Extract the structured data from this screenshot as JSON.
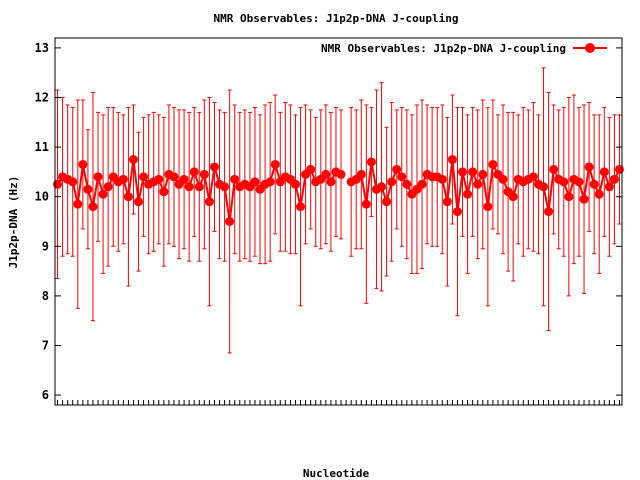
{
  "chart_data": {
    "type": "line",
    "title": "NMR Observables: J1p2p-DNA J-coupling",
    "xlabel": "Nucleotide",
    "ylabel": "J1p2p-DNA (Hz)",
    "ylim": [
      5.8,
      13.2
    ],
    "yticks": [
      6,
      7,
      8,
      9,
      10,
      11,
      12,
      13
    ],
    "x_tick_labels_legible": false,
    "legend": {
      "position": "top-right",
      "entries": [
        "NMR Observables: J1p2p-DNA J-coupling"
      ]
    },
    "grid": false,
    "series": [
      {
        "name": "NMR Observables: J1p2p-DNA J-coupling",
        "color": "#ff0000",
        "marker": "circle",
        "values": [
          10.25,
          10.4,
          10.35,
          10.3,
          9.85,
          10.65,
          10.15,
          9.8,
          10.4,
          10.05,
          10.2,
          10.4,
          10.3,
          10.35,
          10.0,
          10.75,
          9.9,
          10.4,
          10.25,
          10.3,
          10.35,
          10.1,
          10.45,
          10.4,
          10.25,
          10.35,
          10.2,
          10.5,
          10.2,
          10.45,
          9.9,
          10.6,
          10.25,
          10.2,
          9.5,
          10.35,
          10.2,
          10.25,
          10.2,
          10.3,
          10.15,
          10.25,
          10.3,
          10.65,
          10.3,
          10.4,
          10.35,
          10.25,
          9.8,
          10.45,
          10.55,
          10.3,
          10.35,
          10.45,
          10.3,
          10.5,
          10.45,
          null,
          10.3,
          10.35,
          10.45,
          9.85,
          10.7,
          10.15,
          10.2,
          9.9,
          10.3,
          10.55,
          10.4,
          10.25,
          10.05,
          10.15,
          10.25,
          10.45,
          10.4,
          10.4,
          10.35,
          9.9,
          10.75,
          9.7,
          10.5,
          10.05,
          10.5,
          10.25,
          10.45,
          9.8,
          10.65,
          10.45,
          10.35,
          10.1,
          10.0,
          10.35,
          10.3,
          10.35,
          10.4,
          10.25,
          10.2,
          9.7,
          10.55,
          10.35,
          10.3,
          10.0,
          10.35,
          10.3,
          9.95,
          10.6,
          10.25,
          10.05,
          10.5,
          10.2,
          10.35,
          10.55
        ],
        "errors": [
          1.9,
          1.6,
          1.5,
          1.5,
          2.1,
          1.3,
          1.2,
          2.3,
          1.3,
          1.6,
          1.6,
          1.4,
          1.4,
          1.3,
          1.8,
          1.1,
          1.4,
          1.2,
          1.4,
          1.4,
          1.3,
          1.5,
          1.4,
          1.4,
          1.5,
          1.4,
          1.5,
          1.3,
          1.5,
          1.5,
          2.1,
          1.3,
          1.5,
          1.5,
          2.65,
          1.5,
          1.5,
          1.5,
          1.5,
          1.5,
          1.5,
          1.6,
          1.6,
          1.4,
          1.4,
          1.5,
          1.5,
          1.4,
          2.0,
          1.4,
          1.2,
          1.3,
          1.4,
          1.4,
          1.4,
          1.3,
          1.3,
          null,
          1.5,
          1.4,
          1.5,
          2.0,
          1.1,
          2.0,
          2.1,
          1.5,
          1.6,
          1.2,
          1.4,
          1.5,
          1.6,
          1.7,
          1.7,
          1.4,
          1.4,
          1.4,
          1.5,
          1.7,
          1.3,
          2.1,
          1.3,
          1.6,
          1.3,
          1.5,
          1.5,
          2.0,
          1.3,
          1.2,
          1.5,
          1.6,
          1.7,
          1.3,
          1.5,
          1.4,
          1.5,
          1.4,
          2.4,
          2.4,
          1.3,
          1.4,
          1.5,
          2.0,
          1.7,
          1.5,
          1.9,
          1.3,
          1.4,
          1.6,
          1.3,
          1.4,
          1.3,
          1.1
        ]
      }
    ]
  }
}
